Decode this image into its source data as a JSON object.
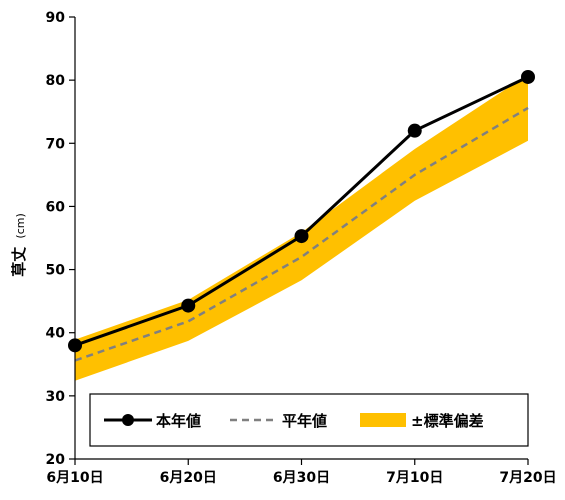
{
  "chart_data": {
    "type": "line",
    "categories": [
      "6月10日",
      "6月20日",
      "6月30日",
      "7月10日",
      "7月20日"
    ],
    "series": [
      {
        "name": "本年値",
        "values": [
          38.0,
          44.3,
          55.3,
          72.0,
          80.5
        ],
        "style": "solid-marker",
        "color": "#000000"
      },
      {
        "name": "平年値",
        "values": [
          35.6,
          41.8,
          52.0,
          65.0,
          75.6
        ],
        "style": "dashed",
        "color": "#808080"
      }
    ],
    "band": {
      "name": "±標準偏差",
      "lower": [
        32.4,
        38.7,
        48.3,
        60.9,
        70.4
      ],
      "upper": [
        38.9,
        45.2,
        55.9,
        69.1,
        80.9
      ],
      "color": "#FFC000"
    },
    "ylabel": "草丈",
    "ylabel_unit": "(cm)",
    "ylim": [
      20,
      90
    ],
    "yticks": [
      20,
      30,
      40,
      50,
      60,
      70,
      80,
      90
    ],
    "grid": false,
    "legend_position": "bottom"
  }
}
